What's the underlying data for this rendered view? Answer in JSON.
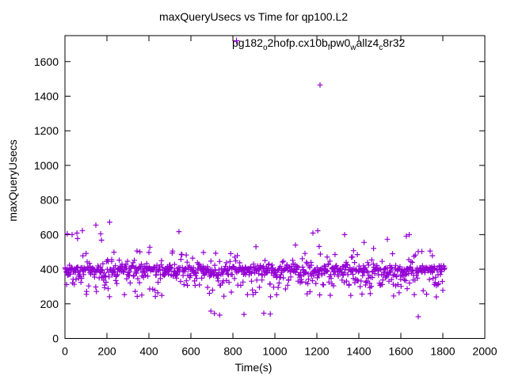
{
  "chart_data": {
    "type": "scatter",
    "title": "maxQueryUsecs vs Time for qp100.L2",
    "xlabel": "Time(s)",
    "ylabel": "maxQueryUsecs",
    "xlim": [
      0,
      2000
    ],
    "ylim": [
      0,
      1750
    ],
    "x_ticks": [
      0,
      200,
      400,
      600,
      800,
      1000,
      1200,
      1400,
      1600,
      1800,
      2000
    ],
    "y_ticks": [
      0,
      200,
      400,
      600,
      800,
      1000,
      1200,
      1400,
      1600
    ],
    "grid": false,
    "marker": "+",
    "marker_color": "#9400D3",
    "legend": {
      "position": "top-right-inside",
      "parts": [
        {
          "t": "pg182"
        },
        {
          "t": "o",
          "sub": true
        },
        {
          "t": "2nofp.cx10b"
        },
        {
          "t": "f",
          "sub": true
        },
        {
          "t": "pw0"
        },
        {
          "t": "w",
          "sub": true
        },
        {
          "t": "allz4"
        },
        {
          "t": "c",
          "sub": true
        },
        {
          "t": "8r32"
        }
      ]
    },
    "series_description": "maxQueryUsecs sampled roughly every 2s from t=0 to t=1810s; dense band centered near 400 usecs (spread ~240-510), single spike at (1215,1465), sparse high outliers 520-675, sparse low outliers 126-160",
    "band": {
      "n": 880,
      "x_start": 0,
      "x_end": 1810,
      "seed": 1337,
      "mixture": [
        {
          "p": 0.56,
          "kind": "tri",
          "mean": 397,
          "spread": 26
        },
        {
          "p": 0.82,
          "kind": "pow",
          "base": 370,
          "range": 66,
          "exp": 1.6
        },
        {
          "p": 0.89,
          "kind": "uniform",
          "min": 240,
          "max": 304
        },
        {
          "p": 0.975,
          "kind": "uniform",
          "min": 416,
          "max": 460
        },
        {
          "p": 1.0,
          "kind": "uniform",
          "min": 460,
          "max": 508
        }
      ]
    },
    "outliers": [
      [
        11,
        605
      ],
      [
        34,
        600
      ],
      [
        57,
        609
      ],
      [
        60,
        577
      ],
      [
        83,
        623
      ],
      [
        147,
        655
      ],
      [
        170,
        605
      ],
      [
        174,
        568
      ],
      [
        213,
        672
      ],
      [
        343,
        505
      ],
      [
        400,
        497
      ],
      [
        404,
        527
      ],
      [
        543,
        617
      ],
      [
        660,
        497
      ],
      [
        695,
        158
      ],
      [
        712,
        144
      ],
      [
        737,
        135
      ],
      [
        853,
        139
      ],
      [
        947,
        146
      ],
      [
        978,
        141
      ],
      [
        910,
        530
      ],
      [
        1098,
        540
      ],
      [
        1181,
        609
      ],
      [
        1204,
        622
      ],
      [
        1211,
        531
      ],
      [
        1215,
        1465
      ],
      [
        1249,
        471
      ],
      [
        1332,
        600
      ],
      [
        1370,
        471
      ],
      [
        1425,
        555
      ],
      [
        1470,
        520
      ],
      [
        1536,
        573
      ],
      [
        1626,
        591
      ],
      [
        1640,
        600
      ],
      [
        1683,
        502
      ],
      [
        1683,
        126
      ],
      [
        1750,
        478
      ]
    ]
  }
}
